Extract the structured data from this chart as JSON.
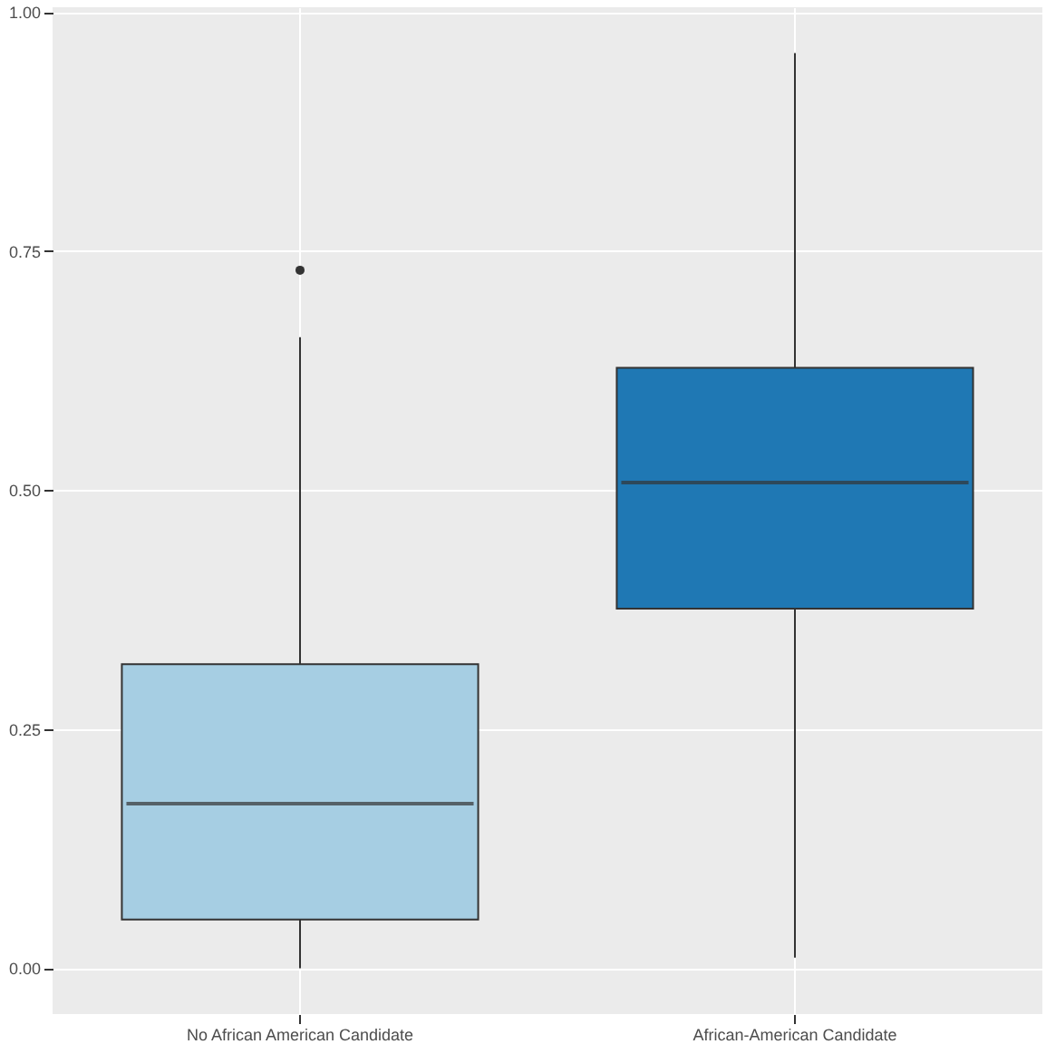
{
  "chart_data": {
    "type": "box",
    "categories": [
      "No African American Candidate",
      "African-American Candidate"
    ],
    "boxes": [
      {
        "low": 0.0,
        "q1": 0.051,
        "median": 0.172,
        "q3": 0.318,
        "high": 0.66,
        "outliers": [
          0.73
        ]
      },
      {
        "low": 0.011,
        "q1": 0.376,
        "median": 0.508,
        "q3": 0.628,
        "high": 0.957
      }
    ],
    "colors": [
      "#a6cee3",
      "#1f78b4"
    ],
    "ylim": [
      -0.048,
      1.005
    ],
    "yticks": [
      {
        "value": 0,
        "label": "0.00"
      },
      {
        "value": 0.25,
        "label": "0.25"
      },
      {
        "value": 0.5,
        "label": "0.50"
      },
      {
        "value": 0.75,
        "label": "0.75"
      },
      {
        "value": 1,
        "label": "1.00"
      }
    ],
    "grid": true
  }
}
